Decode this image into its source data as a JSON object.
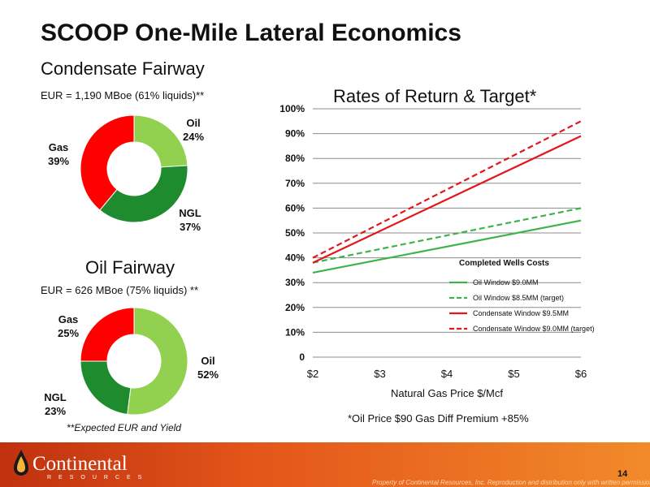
{
  "slide": {
    "title": "SCOOP One-Mile Lateral Economics",
    "page_number": "14",
    "disclaimer": "Property of Continental Resources, Inc. Reproduction and distribution only with written permission",
    "logo": {
      "name": "Continental",
      "sub": "RESOURCES"
    },
    "footnote": "**Expected EUR and Yield",
    "price_note": "*Oil Price $90   Gas Diff Premium +85%",
    "colors": {
      "oil": "#92d050",
      "ngl": "#1e8b2e",
      "gas": "#ff0000",
      "footer": "#e4561a"
    }
  },
  "chart_data": [
    {
      "type": "pie",
      "title": "Condensate Fairway",
      "subtitle": "EUR = 1,190 MBoe (61% liquids)**",
      "slices": [
        {
          "label": "Oil",
          "value": 24,
          "display": "24%",
          "color": "#92d050"
        },
        {
          "label": "NGL",
          "value": 37,
          "display": "37%",
          "color": "#1e8b2e"
        },
        {
          "label": "Gas",
          "value": 39,
          "display": "39%",
          "color": "#ff0000"
        }
      ]
    },
    {
      "type": "pie",
      "title": "Oil Fairway",
      "subtitle": "EUR = 626 MBoe (75% liquids) **",
      "slices": [
        {
          "label": "Oil",
          "value": 52,
          "display": "52%",
          "color": "#92d050"
        },
        {
          "label": "NGL",
          "value": 23,
          "display": "23%",
          "color": "#1e8b2e"
        },
        {
          "label": "Gas",
          "value": 25,
          "display": "25%",
          "color": "#ff0000"
        }
      ]
    },
    {
      "type": "line",
      "title": "Rates of Return & Target*",
      "xlabel": "Natural Gas Price $/Mcf",
      "ylabel": "",
      "x": [
        2,
        6
      ],
      "xticks": [
        2,
        3,
        4,
        5,
        6
      ],
      "xtick_labels": [
        "$2",
        "$3",
        "$4",
        "$5",
        "$6"
      ],
      "ylim": [
        0,
        100
      ],
      "yticks": [
        0,
        10,
        20,
        30,
        40,
        50,
        60,
        70,
        80,
        90,
        100
      ],
      "ytick_labels": [
        "0",
        "10%",
        "20%",
        "30%",
        "40%",
        "50%",
        "60%",
        "70%",
        "80%",
        "90%",
        "100%"
      ],
      "grid": true,
      "legend": {
        "title": "Completed Wells Costs",
        "placement": "lower-right"
      },
      "series": [
        {
          "name": "Oil Window $9.0MM",
          "values": [
            34,
            55
          ],
          "color": "#3cb44b",
          "dashed": false
        },
        {
          "name": "Oil Window $8.5MM (target)",
          "values": [
            38,
            60
          ],
          "color": "#3cb44b",
          "dashed": true
        },
        {
          "name": "Condensate Window $9.5MM",
          "values": [
            38,
            89
          ],
          "color": "#e3161b",
          "dashed": false
        },
        {
          "name": "Condensate Window  $9.0MM (target)",
          "values": [
            40,
            95
          ],
          "color": "#e3161b",
          "dashed": true
        }
      ]
    }
  ]
}
